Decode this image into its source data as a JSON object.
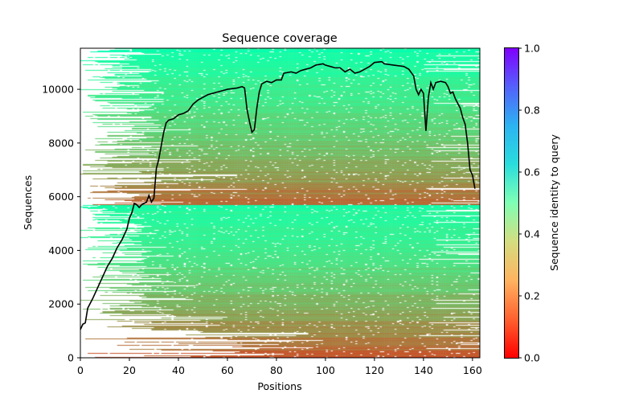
{
  "chart_data": {
    "type": "heatmap",
    "title": "Sequence coverage",
    "xlabel": "Positions",
    "ylabel": "Sequences",
    "xlim": [
      0,
      163
    ],
    "ylim": [
      0,
      11530
    ],
    "xticks": [
      0,
      20,
      40,
      60,
      80,
      100,
      120,
      140,
      160
    ],
    "yticks": [
      0,
      2000,
      4000,
      6000,
      8000,
      10000
    ],
    "colorbar": {
      "label": "Sequence identity to query",
      "range": [
        0,
        1
      ],
      "ticks": [
        "0.0",
        "0.2",
        "0.4",
        "0.6",
        "0.8",
        "1.0"
      ],
      "colormap": "rainbow_r"
    },
    "coverage_line": {
      "color": "#000000",
      "x": [
        0,
        1,
        2,
        3,
        5,
        7,
        9,
        11,
        13,
        15,
        17,
        19,
        20,
        21,
        22,
        23,
        24,
        25,
        27,
        28,
        29,
        30,
        31,
        32,
        33,
        34,
        35,
        36,
        38,
        40,
        42,
        44,
        46,
        48,
        50,
        52,
        56,
        58,
        60,
        64,
        66,
        67,
        68,
        69,
        70,
        71,
        72,
        73,
        74,
        76,
        78,
        80,
        82,
        83,
        86,
        88,
        90,
        94,
        96,
        99,
        100,
        102,
        104,
        106,
        108,
        110,
        112,
        114,
        116,
        118,
        120,
        123,
        124,
        128,
        132,
        134,
        136,
        137,
        138,
        139,
        140,
        141,
        142,
        143,
        144,
        145,
        147,
        149,
        150,
        151,
        152,
        153,
        155,
        156,
        157,
        158,
        159,
        160,
        161
      ],
      "y": [
        1050,
        1250,
        1300,
        1850,
        2200,
        2600,
        3000,
        3400,
        3700,
        4100,
        4400,
        4800,
        5200,
        5400,
        5750,
        5700,
        5600,
        5700,
        5800,
        6050,
        5800,
        5950,
        7050,
        7400,
        7900,
        8400,
        8750,
        8850,
        8900,
        9050,
        9100,
        9200,
        9450,
        9600,
        9700,
        9800,
        9900,
        9950,
        10000,
        10050,
        10100,
        10050,
        9250,
        8800,
        8400,
        8500,
        9300,
        9900,
        10200,
        10300,
        10250,
        10350,
        10350,
        10600,
        10650,
        10600,
        10700,
        10800,
        10900,
        10950,
        10900,
        10850,
        10800,
        10800,
        10650,
        10750,
        10600,
        10650,
        10750,
        10850,
        11000,
        11030,
        10950,
        10900,
        10850,
        10750,
        10500,
        10000,
        9800,
        10000,
        9850,
        8450,
        9700,
        10250,
        10000,
        10250,
        10300,
        10250,
        10100,
        9850,
        9900,
        9650,
        9300,
        8950,
        8700,
        8000,
        7000,
        6800,
        6300
      ]
    },
    "heatmap_blocks": [
      {
        "seq_range": [
          0,
          5700
        ],
        "identity_range": [
          0.1,
          0.45
        ]
      },
      {
        "seq_range": [
          5700,
          11530
        ],
        "identity_range": [
          0.12,
          0.47
        ]
      }
    ]
  }
}
